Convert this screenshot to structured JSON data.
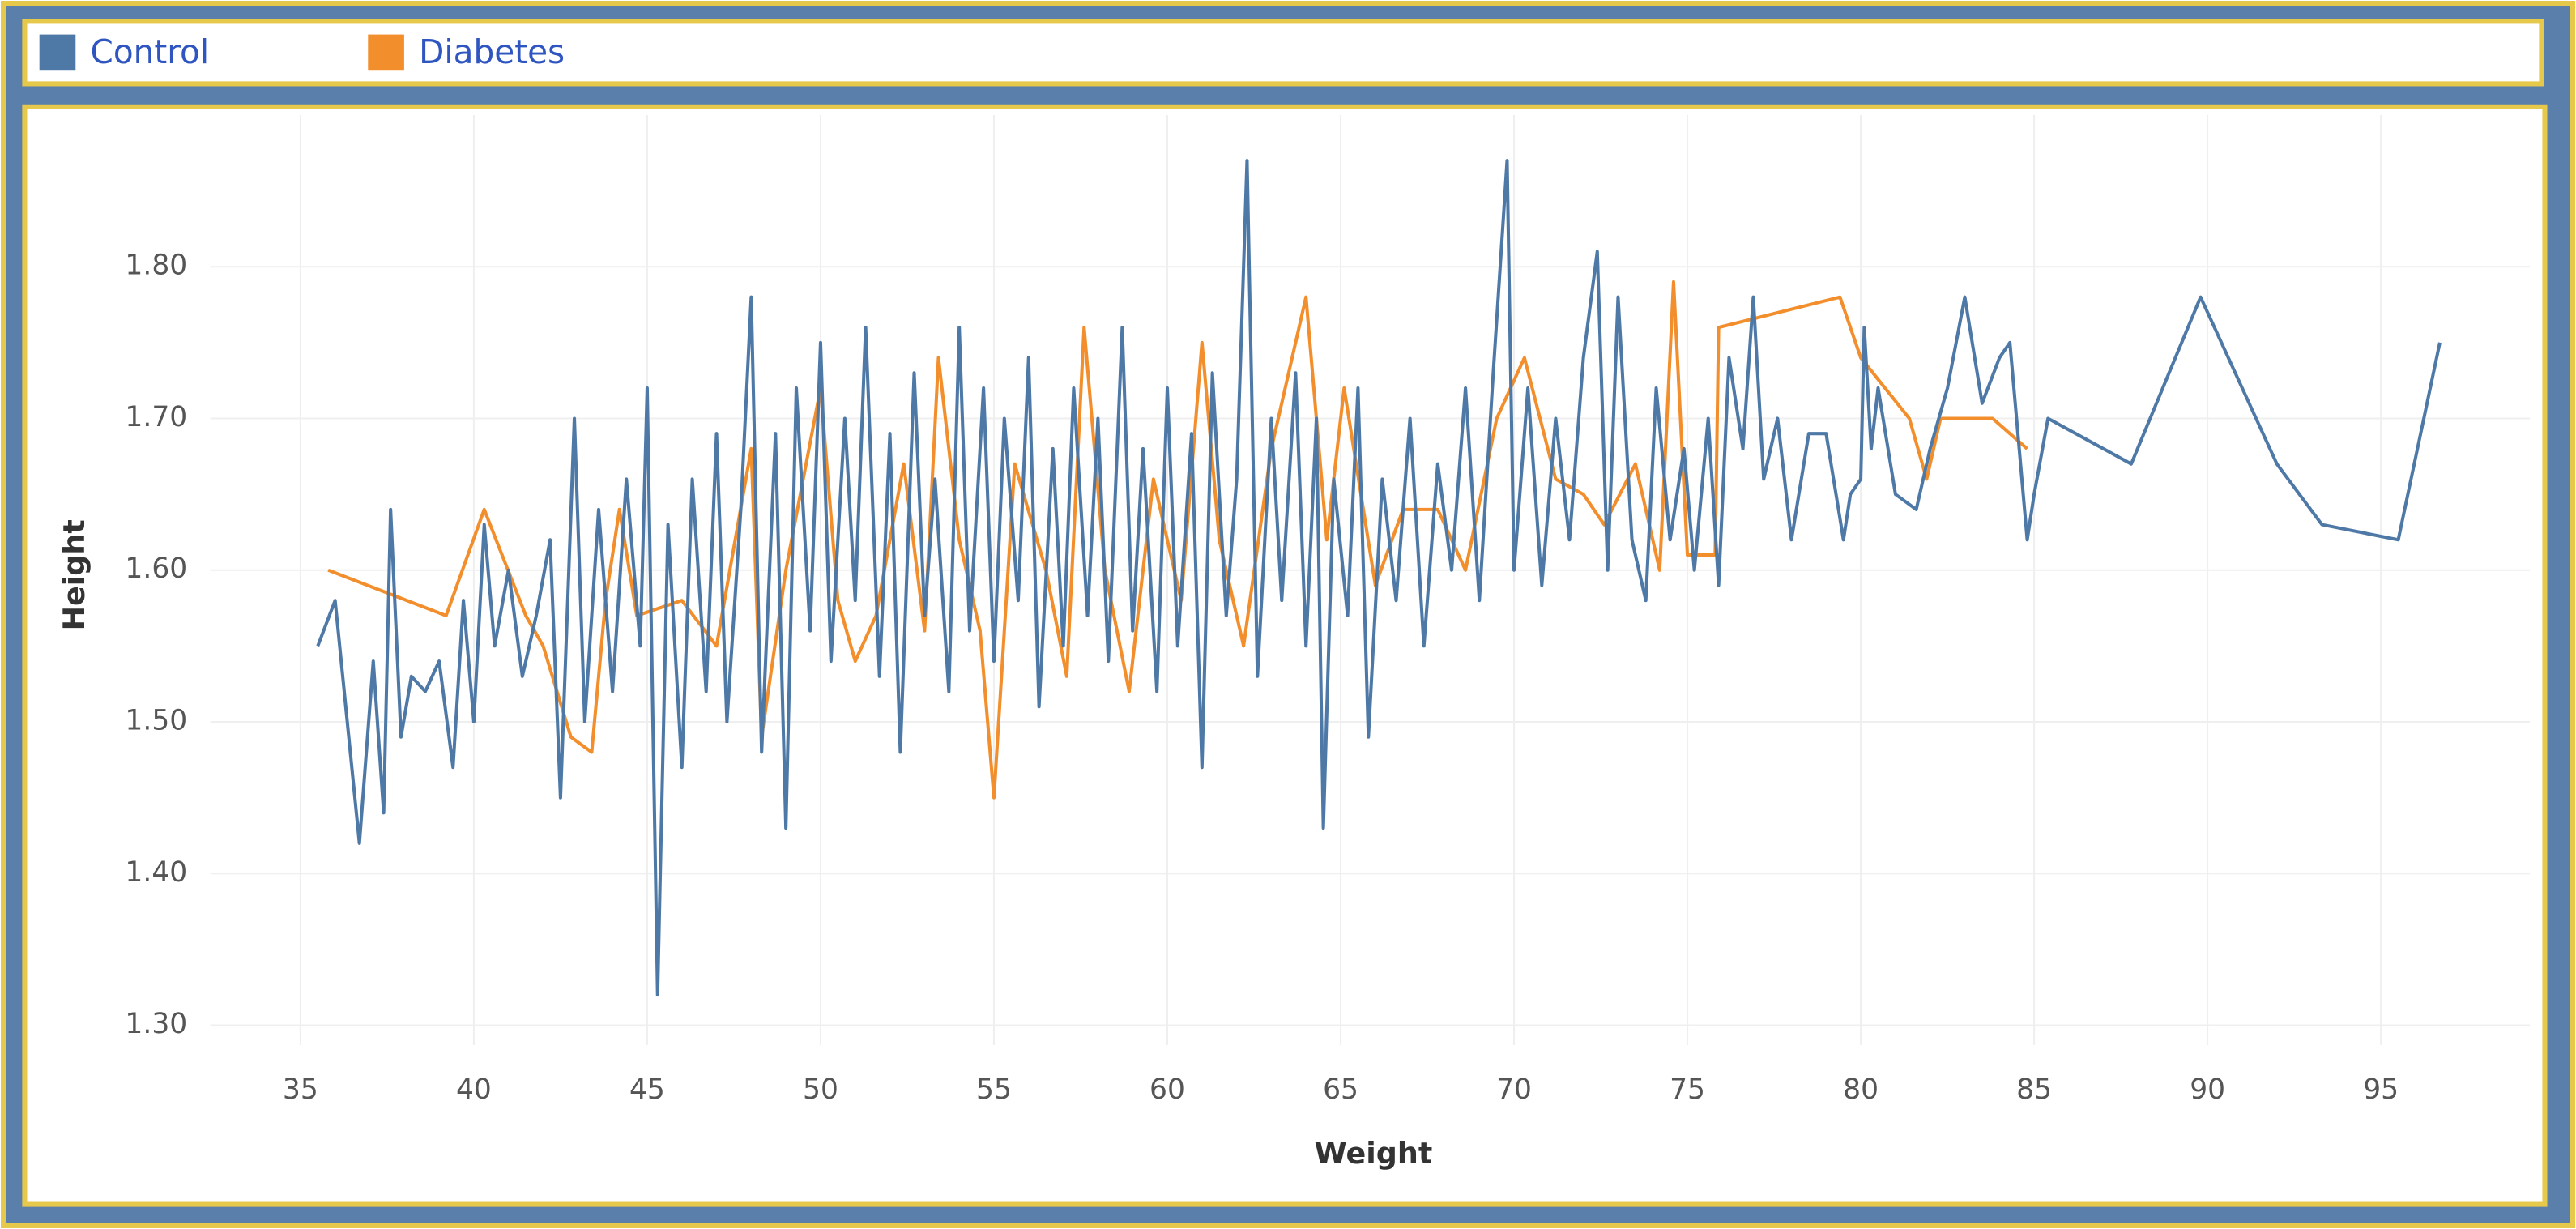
{
  "chart_data": {
    "type": "line",
    "x_label": "Weight",
    "y_label": "Height",
    "xlim": [
      32.4,
      99.3
    ],
    "ylim": [
      1.287,
      1.9
    ],
    "xticks": [
      35,
      40,
      45,
      50,
      55,
      60,
      65,
      70,
      75,
      80,
      85,
      90,
      95
    ],
    "yticks": [
      {
        "value": 1.3,
        "label": "1.30"
      },
      {
        "value": 1.4,
        "label": "1.40"
      },
      {
        "value": 1.5,
        "label": "1.50"
      },
      {
        "value": 1.6,
        "label": "1.60"
      },
      {
        "value": 1.7,
        "label": "1.70"
      },
      {
        "value": 1.8,
        "label": "1.80"
      }
    ],
    "grid": true,
    "legend": "top",
    "series": [
      {
        "name": "Control",
        "color": "#4e79a7",
        "x": [
          35.5,
          36.0,
          36.7,
          37.1,
          37.4,
          37.6,
          37.9,
          38.2,
          38.6,
          39.0,
          39.4,
          39.7,
          40.0,
          40.3,
          40.6,
          41.0,
          41.4,
          41.8,
          42.2,
          42.5,
          42.9,
          43.2,
          43.6,
          44.0,
          44.4,
          44.8,
          45.0,
          45.3,
          45.6,
          46.0,
          46.3,
          46.7,
          47.0,
          47.3,
          47.7,
          48.0,
          48.3,
          48.7,
          49.0,
          49.3,
          49.7,
          50.0,
          50.3,
          50.7,
          51.0,
          51.3,
          51.7,
          52.0,
          52.3,
          52.7,
          53.0,
          53.3,
          53.7,
          54.0,
          54.3,
          54.7,
          55.0,
          55.3,
          55.7,
          56.0,
          56.3,
          56.7,
          57.0,
          57.3,
          57.7,
          58.0,
          58.3,
          58.7,
          59.0,
          59.3,
          59.7,
          60.0,
          60.3,
          60.7,
          61.0,
          61.3,
          61.7,
          62.0,
          62.3,
          62.6,
          63.0,
          63.3,
          63.7,
          64.0,
          64.3,
          64.5,
          64.8,
          65.2,
          65.5,
          65.8,
          66.2,
          66.6,
          67.0,
          67.4,
          67.8,
          68.2,
          68.6,
          69.0,
          69.4,
          69.8,
          70.0,
          70.4,
          70.8,
          71.2,
          71.6,
          72.0,
          72.4,
          72.7,
          73.0,
          73.4,
          73.8,
          74.1,
          74.5,
          74.9,
          75.2,
          75.6,
          75.9,
          76.2,
          76.6,
          76.9,
          77.2,
          77.6,
          78.0,
          78.5,
          79.0,
          79.5,
          79.7,
          80.0,
          80.1,
          80.3,
          80.5,
          81.0,
          81.6,
          82.0,
          82.5,
          83.0,
          83.5,
          84.0,
          84.3,
          84.8,
          85.0,
          85.4,
          87.8,
          89.8,
          92.0,
          93.3,
          95.5,
          96.7
        ],
        "values": [
          1.55,
          1.58,
          1.42,
          1.54,
          1.44,
          1.64,
          1.49,
          1.53,
          1.52,
          1.54,
          1.47,
          1.58,
          1.5,
          1.63,
          1.55,
          1.6,
          1.53,
          1.57,
          1.62,
          1.45,
          1.7,
          1.5,
          1.64,
          1.52,
          1.66,
          1.55,
          1.72,
          1.32,
          1.63,
          1.47,
          1.66,
          1.52,
          1.69,
          1.5,
          1.64,
          1.78,
          1.48,
          1.69,
          1.43,
          1.72,
          1.56,
          1.75,
          1.54,
          1.7,
          1.58,
          1.76,
          1.53,
          1.69,
          1.48,
          1.73,
          1.57,
          1.66,
          1.52,
          1.76,
          1.56,
          1.72,
          1.54,
          1.7,
          1.58,
          1.74,
          1.51,
          1.68,
          1.55,
          1.72,
          1.57,
          1.7,
          1.54,
          1.76,
          1.56,
          1.68,
          1.52,
          1.72,
          1.55,
          1.69,
          1.47,
          1.73,
          1.57,
          1.66,
          1.87,
          1.53,
          1.7,
          1.58,
          1.73,
          1.55,
          1.7,
          1.43,
          1.66,
          1.57,
          1.72,
          1.49,
          1.66,
          1.58,
          1.7,
          1.55,
          1.67,
          1.6,
          1.72,
          1.58,
          1.73,
          1.87,
          1.6,
          1.72,
          1.59,
          1.7,
          1.62,
          1.74,
          1.81,
          1.6,
          1.78,
          1.62,
          1.58,
          1.72,
          1.62,
          1.68,
          1.6,
          1.7,
          1.59,
          1.74,
          1.68,
          1.78,
          1.66,
          1.7,
          1.62,
          1.69,
          1.69,
          1.62,
          1.65,
          1.66,
          1.76,
          1.68,
          1.72,
          1.65,
          1.64,
          1.68,
          1.72,
          1.78,
          1.71,
          1.74,
          1.75,
          1.62,
          1.65,
          1.7,
          1.67,
          1.78,
          1.67,
          1.63,
          1.62,
          1.75
        ]
      },
      {
        "name": "Diabetes",
        "color": "#f28e2b",
        "x": [
          35.8,
          39.2,
          40.3,
          41.5,
          42.0,
          42.8,
          43.4,
          43.8,
          44.2,
          44.7,
          46.0,
          47.0,
          48.0,
          48.3,
          49.0,
          50.0,
          50.5,
          51.0,
          51.6,
          52.4,
          53.0,
          53.4,
          54.0,
          54.6,
          55.0,
          55.6,
          56.5,
          57.1,
          57.6,
          58.2,
          58.9,
          59.6,
          60.4,
          61.0,
          61.5,
          62.2,
          63.0,
          64.0,
          64.6,
          65.1,
          66.0,
          66.8,
          67.8,
          68.6,
          69.5,
          70.3,
          71.2,
          72.0,
          72.6,
          73.5,
          74.2,
          74.6,
          75.0,
          75.5,
          75.8,
          75.9,
          79.4,
          80.0,
          81.4,
          81.9,
          82.3,
          83.8,
          84.8
        ],
        "values": [
          1.6,
          1.57,
          1.64,
          1.57,
          1.55,
          1.49,
          1.48,
          1.58,
          1.64,
          1.57,
          1.58,
          1.55,
          1.68,
          1.49,
          1.6,
          1.72,
          1.58,
          1.54,
          1.57,
          1.67,
          1.56,
          1.74,
          1.62,
          1.56,
          1.45,
          1.67,
          1.6,
          1.53,
          1.76,
          1.6,
          1.52,
          1.66,
          1.58,
          1.75,
          1.62,
          1.55,
          1.68,
          1.78,
          1.62,
          1.72,
          1.59,
          1.64,
          1.64,
          1.6,
          1.7,
          1.74,
          1.66,
          1.65,
          1.63,
          1.67,
          1.6,
          1.79,
          1.61,
          1.61,
          1.61,
          1.76,
          1.78,
          1.74,
          1.7,
          1.66,
          1.7,
          1.7,
          1.68
        ]
      }
    ]
  }
}
